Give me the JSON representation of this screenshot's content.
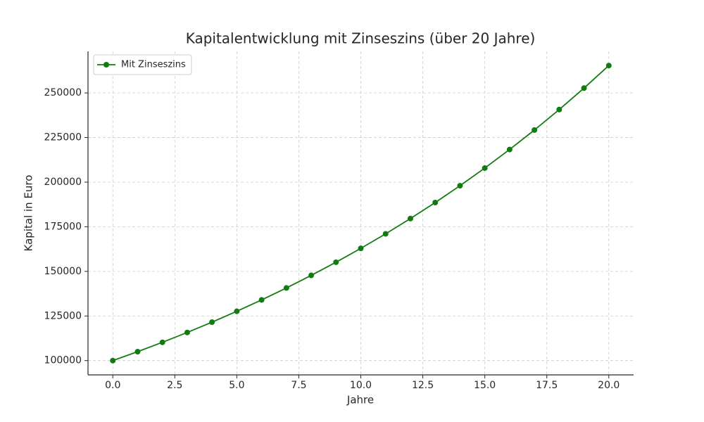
{
  "chart_data": {
    "type": "line",
    "title": "Kapitalentwicklung mit Zinseszins (über 20 Jahre)",
    "x_label": "Jahre",
    "y_label": "Kapital in Euro",
    "x": [
      0,
      1,
      2,
      3,
      4,
      5,
      6,
      7,
      8,
      9,
      10,
      11,
      12,
      13,
      14,
      15,
      16,
      17,
      18,
      19,
      20
    ],
    "series": [
      {
        "name": "Mit Zinseszins",
        "color": "#107c10",
        "values": [
          100000,
          105000,
          110250,
          115763,
          121551,
          127628,
          134010,
          140710,
          147746,
          155133,
          162889,
          171034,
          179586,
          188565,
          197993,
          207893,
          218287,
          229202,
          240662,
          252695,
          265330
        ]
      }
    ],
    "xlim": [
      -1,
      21
    ],
    "ylim": [
      92000,
      273300
    ],
    "xticks": [
      {
        "value": 0,
        "label": "0.0"
      },
      2.5,
      {
        "value": 5,
        "label": "5.0"
      },
      7.5,
      {
        "value": 10,
        "label": "10.0"
      },
      12.5,
      {
        "value": 15,
        "label": "15.0"
      },
      17.5,
      {
        "value": 20,
        "label": "20.0"
      }
    ],
    "yticks": [
      100000,
      125000,
      150000,
      175000,
      200000,
      225000,
      250000
    ],
    "grid": true,
    "legend": "upper-left"
  }
}
